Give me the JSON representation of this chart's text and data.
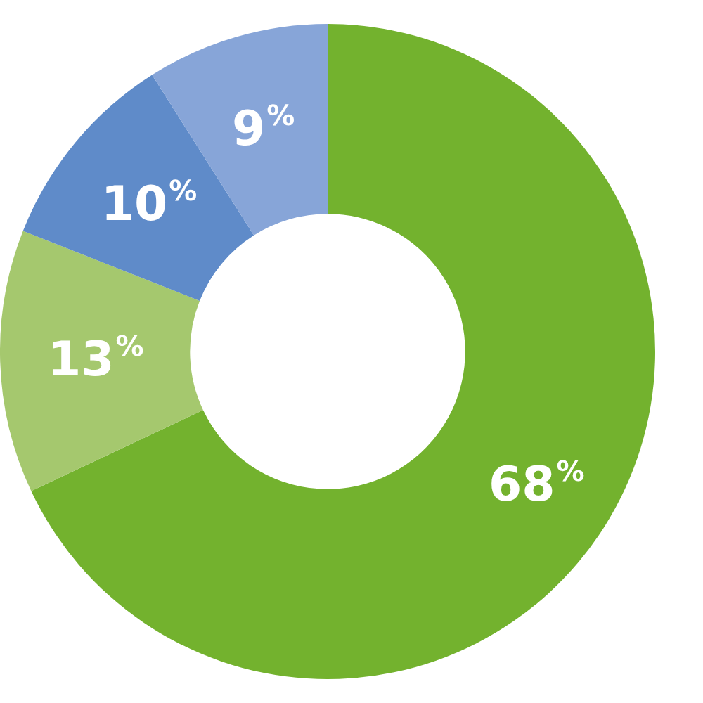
{
  "chart_data": {
    "type": "donut",
    "categories": [
      null,
      null,
      null,
      null
    ],
    "values": [
      68,
      13,
      10,
      9
    ],
    "colors": [
      "#73b22e",
      "#a5c86e",
      "#5f8bc9",
      "#87a5d8"
    ],
    "value_labels": [
      "68%",
      "13%",
      "10%",
      "9%"
    ],
    "legend": false
  }
}
